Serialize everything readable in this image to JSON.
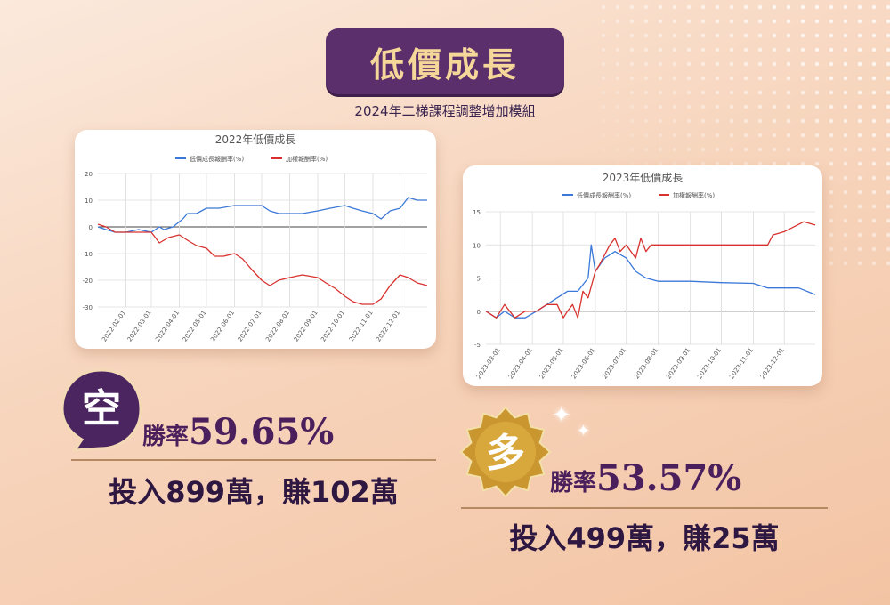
{
  "header": {
    "title": "低價成長",
    "subtitle": "2024年二梯課程調整增加模組"
  },
  "left_panel": {
    "badge": "空",
    "rate_label": "勝率",
    "rate_value": "59.65%",
    "invest_text": "投入899萬，賺102萬"
  },
  "right_panel": {
    "badge": "多",
    "rate_label": "勝率",
    "rate_value": "53.57%",
    "invest_text": "投入499萬，賺25萬"
  },
  "colors": {
    "title_bg": "#5a2f6b",
    "title_text": "#f6d79a",
    "series_blue": "#3b78d8",
    "series_red": "#d8322f",
    "badge_purple": "#4a2560",
    "badge_gold": "#c9962f"
  },
  "chart_data": [
    {
      "type": "line",
      "title": "2022年低價成長",
      "xlabel": "",
      "ylabel": "",
      "ylim": [
        -30,
        20
      ],
      "yticks": [
        20,
        10,
        0,
        -10,
        -20,
        -30
      ],
      "xlim": [
        "2022-01-01",
        "2022-12-31"
      ],
      "xticks": [
        "2022-02-01",
        "2022-03-01",
        "2022-04-01",
        "2022-05-01",
        "2022-06-01",
        "2022-07-01",
        "2022-08-01",
        "2022-09-01",
        "2022-10-01",
        "2022-11-01",
        "2022-12-01"
      ],
      "grid": true,
      "legend": "top",
      "series": [
        {
          "name": "低價成長報酬率(%)",
          "color": "#3b78d8",
          "points": [
            [
              "2022-01-01",
              0
            ],
            [
              "2022-01-10",
              -1
            ],
            [
              "2022-01-20",
              -2
            ],
            [
              "2022-02-01",
              -2
            ],
            [
              "2022-02-15",
              -1
            ],
            [
              "2022-03-01",
              -2
            ],
            [
              "2022-03-10",
              0
            ],
            [
              "2022-03-15",
              -1
            ],
            [
              "2022-03-25",
              0
            ],
            [
              "2022-04-05",
              3
            ],
            [
              "2022-04-10",
              5
            ],
            [
              "2022-04-20",
              5
            ],
            [
              "2022-05-01",
              7
            ],
            [
              "2022-05-15",
              7
            ],
            [
              "2022-06-01",
              8
            ],
            [
              "2022-06-15",
              8
            ],
            [
              "2022-07-01",
              8
            ],
            [
              "2022-07-10",
              6
            ],
            [
              "2022-07-20",
              5
            ],
            [
              "2022-08-01",
              5
            ],
            [
              "2022-08-15",
              5
            ],
            [
              "2022-09-01",
              6
            ],
            [
              "2022-09-15",
              7
            ],
            [
              "2022-10-01",
              8
            ],
            [
              "2022-10-10",
              7
            ],
            [
              "2022-10-20",
              6
            ],
            [
              "2022-11-01",
              5
            ],
            [
              "2022-11-10",
              3
            ],
            [
              "2022-11-20",
              6
            ],
            [
              "2022-12-01",
              7
            ],
            [
              "2022-12-10",
              11
            ],
            [
              "2022-12-20",
              10
            ],
            [
              "2022-12-31",
              10
            ]
          ]
        },
        {
          "name": "加權報酬率(%)",
          "color": "#d8322f",
          "points": [
            [
              "2022-01-01",
              1
            ],
            [
              "2022-01-10",
              0
            ],
            [
              "2022-01-20",
              -2
            ],
            [
              "2022-02-01",
              -2
            ],
            [
              "2022-02-15",
              -2
            ],
            [
              "2022-03-01",
              -2
            ],
            [
              "2022-03-10",
              -6
            ],
            [
              "2022-03-20",
              -4
            ],
            [
              "2022-04-01",
              -3
            ],
            [
              "2022-04-10",
              -5
            ],
            [
              "2022-04-20",
              -7
            ],
            [
              "2022-05-01",
              -8
            ],
            [
              "2022-05-10",
              -11
            ],
            [
              "2022-05-20",
              -11
            ],
            [
              "2022-06-01",
              -10
            ],
            [
              "2022-06-10",
              -12
            ],
            [
              "2022-06-20",
              -16
            ],
            [
              "2022-07-01",
              -20
            ],
            [
              "2022-07-10",
              -22
            ],
            [
              "2022-07-20",
              -20
            ],
            [
              "2022-08-01",
              -19
            ],
            [
              "2022-08-15",
              -18
            ],
            [
              "2022-09-01",
              -19
            ],
            [
              "2022-09-10",
              -21
            ],
            [
              "2022-09-20",
              -23
            ],
            [
              "2022-10-01",
              -26
            ],
            [
              "2022-10-10",
              -28
            ],
            [
              "2022-10-20",
              -29
            ],
            [
              "2022-11-01",
              -29
            ],
            [
              "2022-11-10",
              -27
            ],
            [
              "2022-11-20",
              -22
            ],
            [
              "2022-12-01",
              -18
            ],
            [
              "2022-12-10",
              -19
            ],
            [
              "2022-12-20",
              -21
            ],
            [
              "2022-12-31",
              -22
            ]
          ]
        }
      ]
    },
    {
      "type": "line",
      "title": "2023年低價成長",
      "xlabel": "",
      "ylabel": "",
      "ylim": [
        -5,
        15
      ],
      "yticks": [
        15,
        10,
        5,
        0,
        -5
      ],
      "xlim": [
        "2023-02-15",
        "2023-12-31"
      ],
      "xticks": [
        "2023-03-01",
        "2023-04-01",
        "2023-05-01",
        "2023-06-01",
        "2023-07-01",
        "2023-08-01",
        "2023-09-01",
        "2023-10-01",
        "2023-11-01",
        "2023-12-01"
      ],
      "grid": true,
      "legend": "top",
      "series": [
        {
          "name": "低價成長報酬率(%)",
          "color": "#3b78d8",
          "points": [
            [
              "2023-02-15",
              0
            ],
            [
              "2023-02-25",
              -1
            ],
            [
              "2023-03-05",
              0
            ],
            [
              "2023-03-15",
              -1
            ],
            [
              "2023-03-25",
              -1
            ],
            [
              "2023-04-05",
              0
            ],
            [
              "2023-04-15",
              1
            ],
            [
              "2023-04-25",
              2
            ],
            [
              "2023-05-05",
              3
            ],
            [
              "2023-05-15",
              3
            ],
            [
              "2023-05-25",
              5
            ],
            [
              "2023-05-28",
              10
            ],
            [
              "2023-06-01",
              6
            ],
            [
              "2023-06-10",
              8
            ],
            [
              "2023-06-20",
              9
            ],
            [
              "2023-07-01",
              8
            ],
            [
              "2023-07-10",
              6
            ],
            [
              "2023-07-20",
              5
            ],
            [
              "2023-08-01",
              4.5
            ],
            [
              "2023-09-01",
              4.5
            ],
            [
              "2023-10-01",
              4.3
            ],
            [
              "2023-11-01",
              4.2
            ],
            [
              "2023-11-15",
              3.5
            ],
            [
              "2023-12-01",
              3.5
            ],
            [
              "2023-12-15",
              3.5
            ],
            [
              "2023-12-31",
              2.5
            ]
          ]
        },
        {
          "name": "加權報酬率(%)",
          "color": "#d8322f",
          "points": [
            [
              "2023-02-15",
              0
            ],
            [
              "2023-02-25",
              -1
            ],
            [
              "2023-03-05",
              1
            ],
            [
              "2023-03-15",
              -1
            ],
            [
              "2023-03-25",
              0
            ],
            [
              "2023-04-05",
              0
            ],
            [
              "2023-04-15",
              1
            ],
            [
              "2023-04-25",
              1
            ],
            [
              "2023-05-01",
              -1
            ],
            [
              "2023-05-05",
              0
            ],
            [
              "2023-05-10",
              1
            ],
            [
              "2023-05-15",
              -1
            ],
            [
              "2023-05-20",
              3
            ],
            [
              "2023-05-25",
              2
            ],
            [
              "2023-06-01",
              6
            ],
            [
              "2023-06-05",
              7
            ],
            [
              "2023-06-15",
              10
            ],
            [
              "2023-06-20",
              11
            ],
            [
              "2023-06-25",
              9
            ],
            [
              "2023-07-01",
              10
            ],
            [
              "2023-07-10",
              8
            ],
            [
              "2023-07-15",
              11
            ],
            [
              "2023-07-20",
              9
            ],
            [
              "2023-07-25",
              10
            ],
            [
              "2023-08-01",
              10
            ],
            [
              "2023-09-01",
              10
            ],
            [
              "2023-10-01",
              10
            ],
            [
              "2023-11-01",
              10
            ],
            [
              "2023-11-15",
              10
            ],
            [
              "2023-11-20",
              11.5
            ],
            [
              "2023-12-01",
              12
            ],
            [
              "2023-12-20",
              13.5
            ],
            [
              "2023-12-31",
              13
            ]
          ]
        }
      ]
    }
  ]
}
